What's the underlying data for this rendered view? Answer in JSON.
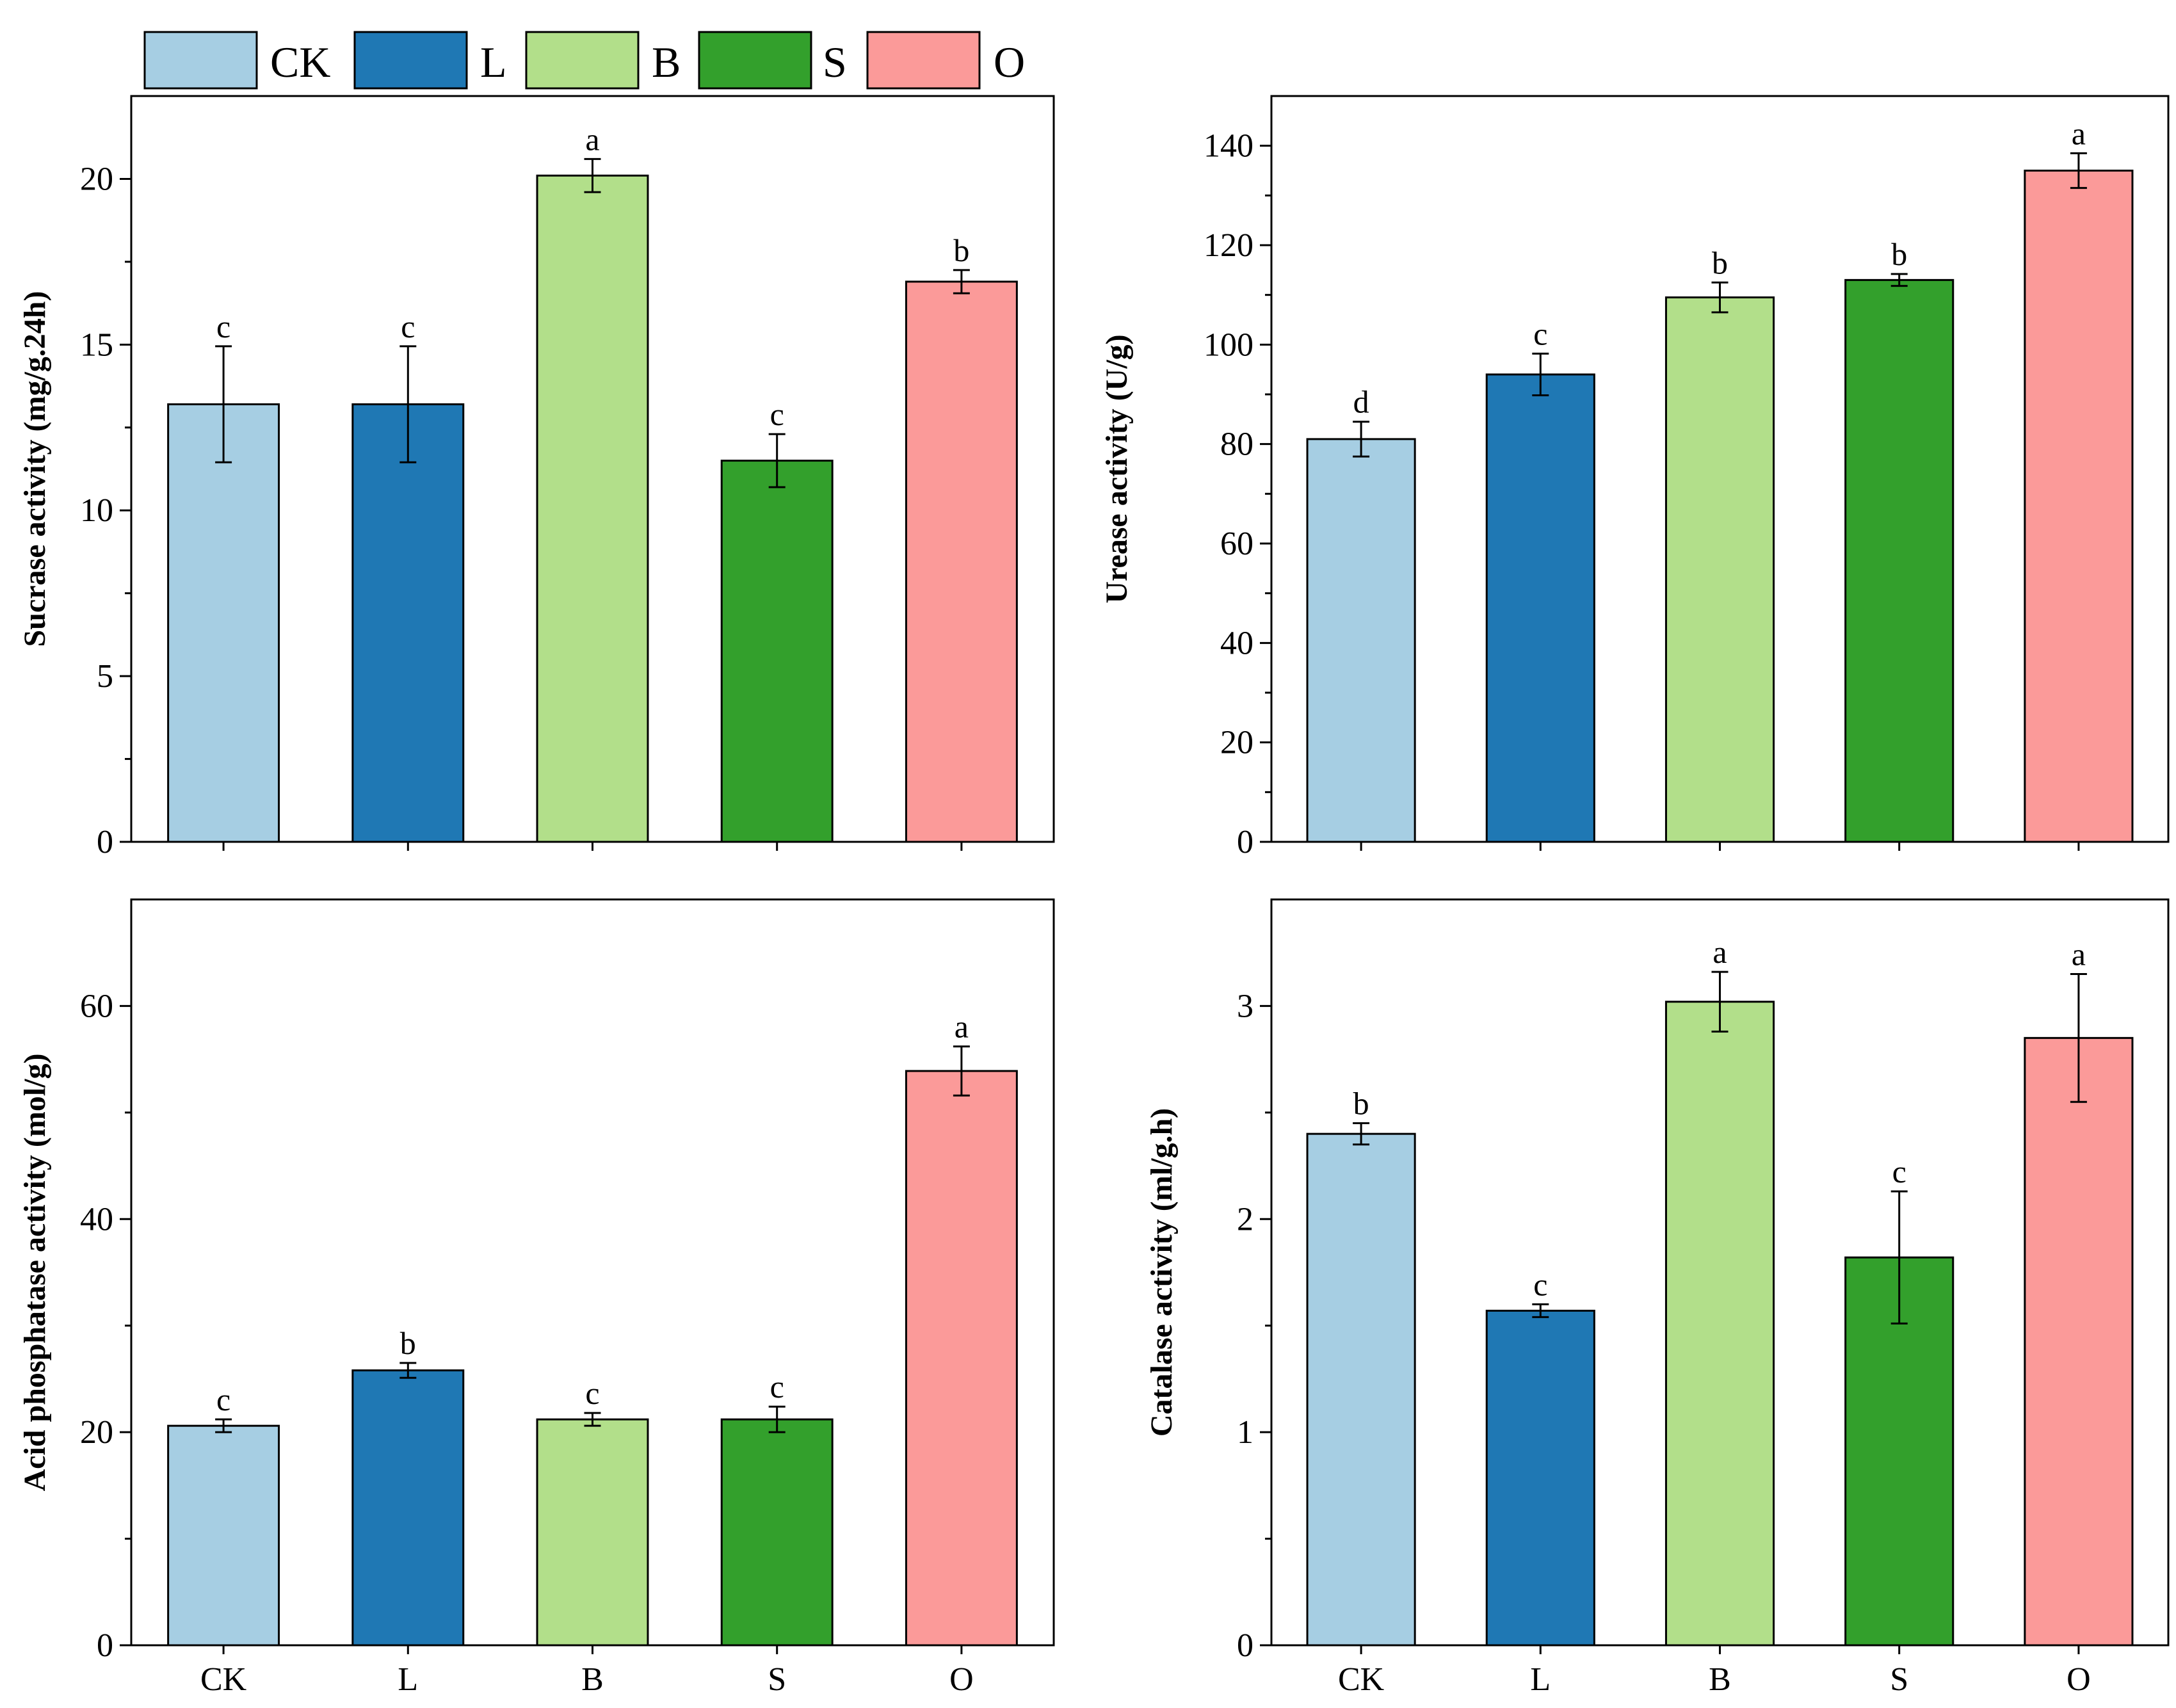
{
  "legend": [
    {
      "label": "CK",
      "color": "#a6cee3"
    },
    {
      "label": "L",
      "color": "#1f78b4"
    },
    {
      "label": "B",
      "color": "#b2df8a"
    },
    {
      "label": "S",
      "color": "#33a02c"
    },
    {
      "label": "O",
      "color": "#fb9a99"
    }
  ],
  "chart_data": [
    {
      "type": "bar",
      "ylabel": "Sucrase activity (mg/g.24h)",
      "categories": [
        "CK",
        "L",
        "B",
        "S",
        "O"
      ],
      "values": [
        13.2,
        13.2,
        20.1,
        11.5,
        16.9
      ],
      "errors": [
        1.75,
        1.75,
        0.5,
        0.8,
        0.35
      ],
      "letters": [
        "c",
        "c",
        "a",
        "c",
        "b"
      ],
      "ylim": [
        0,
        22.5
      ],
      "yticks": [
        0,
        5,
        10,
        15,
        20
      ],
      "show_xticklabels": false
    },
    {
      "type": "bar",
      "ylabel": "Urease activity (U/g)",
      "categories": [
        "CK",
        "L",
        "B",
        "S",
        "O"
      ],
      "values": [
        81,
        94,
        109.5,
        113,
        135
      ],
      "errors": [
        3.5,
        4.2,
        3,
        1.2,
        3.5
      ],
      "letters": [
        "d",
        "c",
        "b",
        "b",
        "a"
      ],
      "ylim": [
        0,
        150
      ],
      "yticks": [
        0,
        20,
        40,
        60,
        80,
        100,
        120,
        140
      ],
      "show_xticklabels": false
    },
    {
      "type": "bar",
      "ylabel": "Acid phosphatase activity (mol/g)",
      "categories": [
        "CK",
        "L",
        "B",
        "S",
        "O"
      ],
      "values": [
        20.6,
        25.8,
        21.2,
        21.2,
        53.9
      ],
      "errors": [
        0.6,
        0.7,
        0.6,
        1.2,
        2.3
      ],
      "letters": [
        "c",
        "b",
        "c",
        "c",
        "a"
      ],
      "ylim": [
        0,
        70
      ],
      "yticks": [
        0,
        20,
        40,
        60
      ],
      "show_xticklabels": true
    },
    {
      "type": "bar",
      "ylabel": "Catalase activity (ml/g.h)",
      "categories": [
        "CK",
        "L",
        "B",
        "S",
        "O"
      ],
      "values": [
        2.4,
        1.57,
        3.02,
        1.82,
        2.85
      ],
      "errors": [
        0.05,
        0.03,
        0.14,
        0.31,
        0.3
      ],
      "letters": [
        "b",
        "c",
        "a",
        "c",
        "a"
      ],
      "ylim": [
        0,
        3.5
      ],
      "yticks": [
        0,
        1,
        2,
        3
      ],
      "show_xticklabels": true
    }
  ]
}
